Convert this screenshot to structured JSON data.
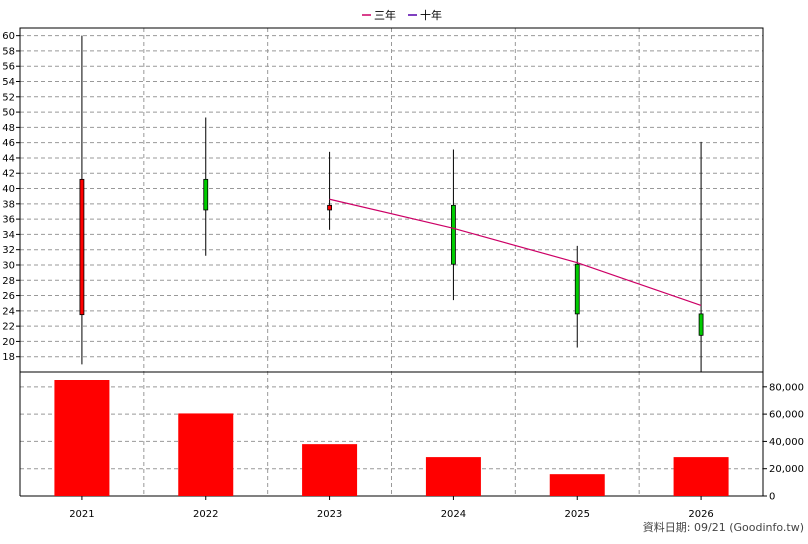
{
  "chart_data": {
    "type": "candlestick",
    "categories": [
      "2021",
      "2022",
      "2023",
      "2024",
      "2025",
      "2026"
    ],
    "price": {
      "ylim": [
        16,
        61
      ],
      "yticks": [
        18,
        20,
        22,
        24,
        26,
        28,
        30,
        32,
        34,
        36,
        38,
        40,
        42,
        44,
        46,
        48,
        50,
        52,
        54,
        56,
        58,
        60
      ],
      "candles": [
        {
          "x": "2021",
          "open": 23.5,
          "close": 41.2,
          "high": 60.0,
          "low": 17.0
        },
        {
          "x": "2022",
          "open": 41.2,
          "close": 37.2,
          "high": 49.3,
          "low": 31.2
        },
        {
          "x": "2023",
          "open": 37.2,
          "close": 37.8,
          "high": 44.8,
          "low": 34.6
        },
        {
          "x": "2024",
          "open": 37.8,
          "close": 30.1,
          "high": 45.1,
          "low": 25.4
        },
        {
          "x": "2025",
          "open": 30.1,
          "close": 23.6,
          "high": 32.5,
          "low": 19.2
        },
        {
          "x": "2026",
          "open": 23.6,
          "close": 20.8,
          "high": 46.1,
          "low": 16.0
        }
      ],
      "up_color": "#ff0000",
      "down_color": "#00cc00"
    },
    "legend": [
      {
        "name": "三年",
        "color": "#cc0066"
      },
      {
        "name": "十年",
        "color": "#5500aa"
      }
    ],
    "ma_series": [
      {
        "name": "三年",
        "color": "#cc0066",
        "points": [
          [
            "2023",
            38.6
          ],
          [
            "2024",
            34.8
          ],
          [
            "2025",
            30.3
          ],
          [
            "2026",
            24.7
          ]
        ]
      }
    ],
    "volume": {
      "ylim": [
        0,
        85000
      ],
      "yticks": [
        0,
        20000,
        40000,
        60000,
        80000
      ],
      "ytick_labels": [
        "0",
        "20,000",
        "40,000",
        "60,000",
        "80,000"
      ],
      "values": [
        85000,
        60500,
        38000,
        28500,
        16000,
        28500
      ],
      "color": "#ff0000"
    },
    "grid": true,
    "legend_position": "top-center"
  },
  "footer": {
    "source": "資料日期: 09/21  (Goodinfo.tw)"
  }
}
